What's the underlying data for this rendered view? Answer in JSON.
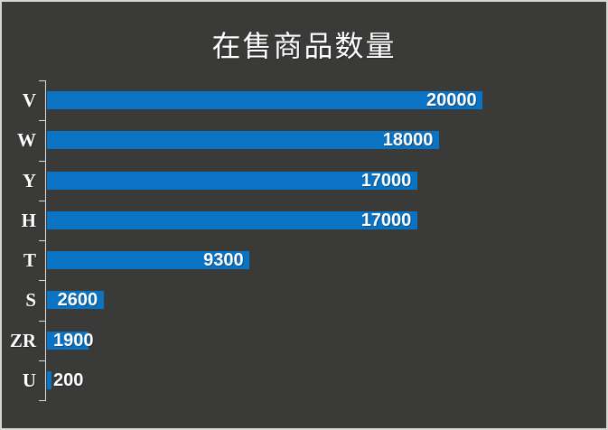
{
  "title": "在售商品数量",
  "colors": {
    "background": "#3a3a38",
    "frame_border": "#d6d6d4",
    "bar": "#0b73c4",
    "axis": "#dcdcdc",
    "text": "#ffffff"
  },
  "chart_data": {
    "type": "bar",
    "orientation": "horizontal",
    "title": "在售商品数量",
    "categories": [
      "V",
      "W",
      "Y",
      "H",
      "T",
      "S",
      "ZR",
      "U"
    ],
    "values": [
      20000,
      18000,
      17000,
      17000,
      9300,
      2600,
      1900,
      200
    ],
    "value_labels": [
      "20000",
      "18000",
      "17000",
      "17000",
      "9300",
      "2600",
      "1900",
      "200"
    ],
    "xlim": [
      0,
      20000
    ],
    "xlabel": "",
    "ylabel": "",
    "grid": false,
    "legend": false,
    "value_labels_position": "inside-end"
  }
}
